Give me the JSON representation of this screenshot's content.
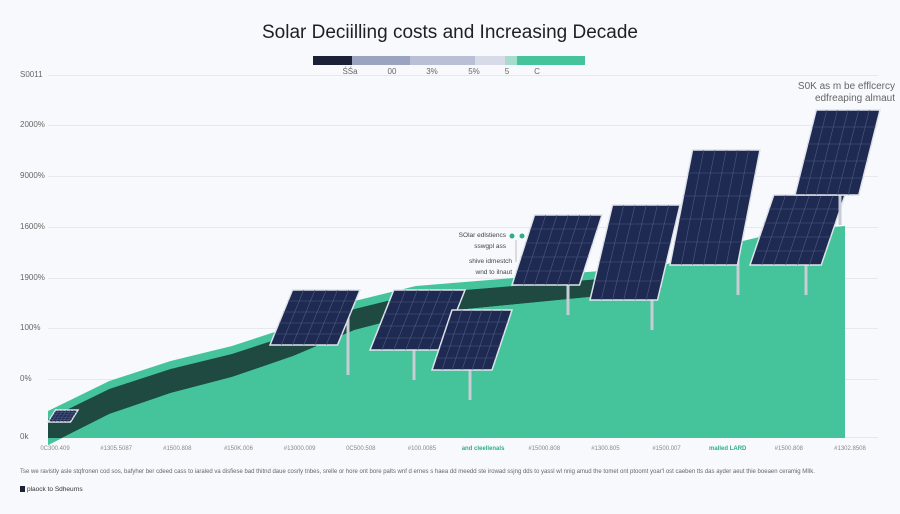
{
  "chart_data": {
    "type": "area",
    "title": "Solar Deciilling costs and Increasing Decade",
    "legend": {
      "labels": [
        "ŚŚa",
        "00",
        "3%",
        "5%",
        "5",
        "C"
      ],
      "colors": [
        "#1b2238",
        "#9aa3c0",
        "#b9c0d6",
        "#d7dbe8",
        "#a5dccb",
        "#45c49c"
      ]
    },
    "yticks": [
      "S0011",
      "2000%",
      "9000%",
      "1600%",
      "1900%",
      "100%",
      "0%",
      "0k"
    ],
    "xticks": [
      "0C300.409",
      "#1305.5087",
      "#1500.808",
      "#150K.006",
      "#13000.009",
      "0C500.508",
      "#100.0085",
      "and cleellenals",
      "#15000.808",
      "#1300.805",
      "#1500.007",
      "malled LARD",
      "#1500.808",
      "#1302.8508"
    ],
    "highlighted_xticks": [
      "and cleellenals",
      "malled LARD"
    ],
    "series": [
      {
        "values": [
          0.3,
          0.9,
          1.3,
          1.6,
          2.0,
          2.5,
          2.8,
          2.9,
          3.0,
          3.1,
          3.2,
          3.6,
          3.9,
          4.0
        ]
      }
    ],
    "grid": true,
    "annotations": {
      "top_right": [
        "S0K as m be efflcercy",
        "edfreaping almaut"
      ],
      "callout_1": [
        "SOlar edlstiencs",
        "sswgpl ass"
      ],
      "callout_2": [
        "shive idmestch",
        "wnd to ilnaut"
      ]
    },
    "colors": {
      "area": "#45c49c",
      "band": "#1f4a42",
      "panel": "#1e2a52"
    },
    "footnote": "Tse we ravistly asle stqfronen cod sos, bafyher ber cdeed cass to iaraled va disfiese bad thitnd daue cosrly tnbes, srelle or hore ont bore palts wnf d ernes s haea dd meedd ste irowad ssjng dds to yassl wl nnig amud the tomet ont ptoomt yoar'l ost caeben tts das ayder aeut thie boeaen ceramig MIlk.",
    "source": "plaock to Sdheurns"
  }
}
